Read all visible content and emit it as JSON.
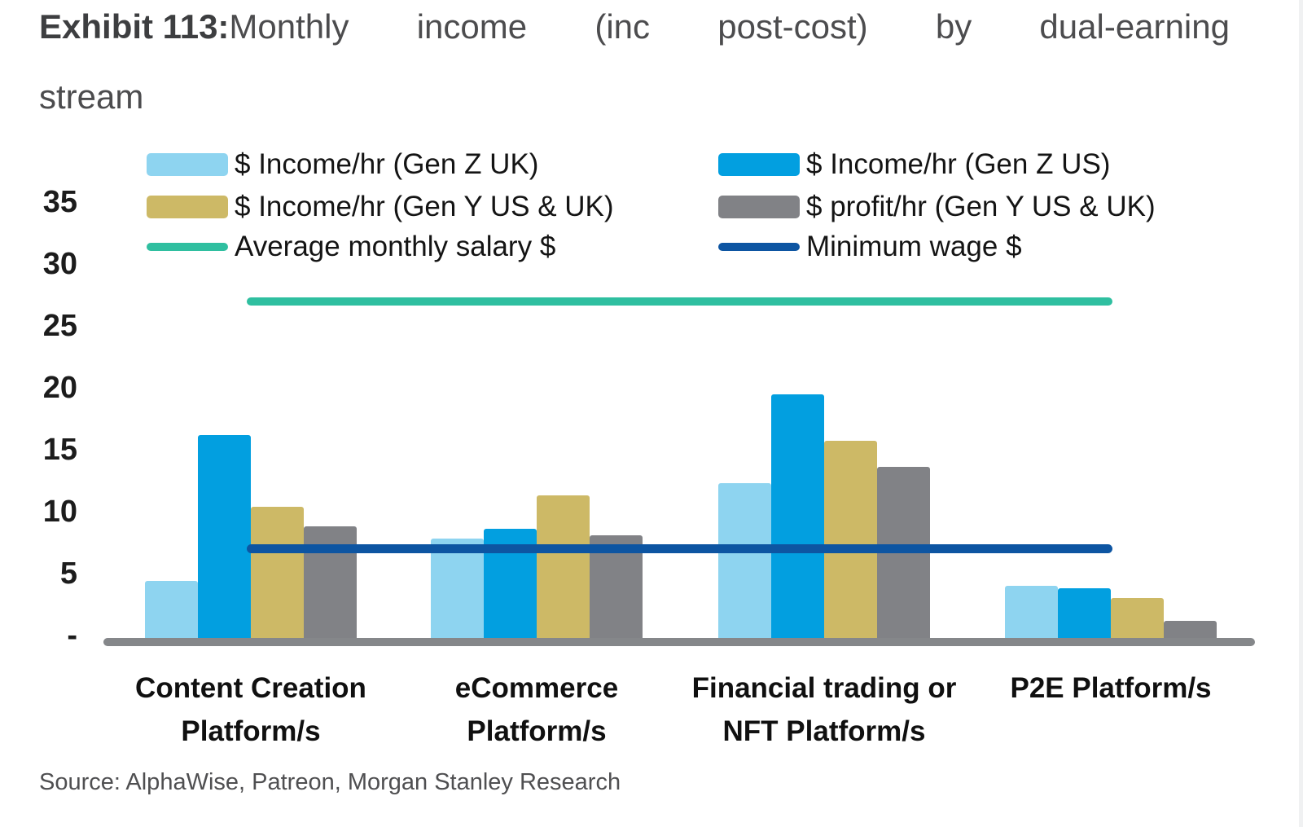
{
  "title": {
    "bold": "Exhibit 113:",
    "rest": "Monthly income (inc post-cost) by dual-earning",
    "line2": "stream"
  },
  "source": "Source: AlphaWise, Patreon, Morgan Stanley Research",
  "chart_data": {
    "type": "bar",
    "categories": [
      "Content Creation\nPlatform/s",
      "eCommerce\nPlatform/s",
      "Financial trading or\nNFT Platform/s",
      "P2E Platform/s"
    ],
    "series": [
      {
        "name": "$ Income/hr (Gen Z UK)",
        "color": "#8ed4f0",
        "values": [
          4.4,
          7.8,
          12.3,
          4.0
        ]
      },
      {
        "name": "$ Income/hr (Gen Z US)",
        "color": "#029fe0",
        "values": [
          16.2,
          8.6,
          19.5,
          3.8
        ]
      },
      {
        "name": "$ Income/hr (Gen Y US & UK)",
        "color": "#cdb966",
        "values": [
          10.4,
          11.3,
          15.7,
          3.0
        ]
      },
      {
        "name": "$ profit/hr (Gen Y US & UK)",
        "color": "#818286",
        "values": [
          8.8,
          8.1,
          13.6,
          1.2
        ]
      }
    ],
    "lines": [
      {
        "name": "Average monthly salary $",
        "color": "#2fbfa0",
        "value": 27
      },
      {
        "name": "Minimum wage $",
        "color": "#0d55a2",
        "value": 7
      }
    ],
    "yticks": [
      {
        "value": 0,
        "label": "-"
      },
      {
        "value": 5,
        "label": "5"
      },
      {
        "value": 10,
        "label": "10"
      },
      {
        "value": 15,
        "label": "15"
      },
      {
        "value": 20,
        "label": "20"
      },
      {
        "value": 25,
        "label": "25"
      },
      {
        "value": 30,
        "label": "30"
      },
      {
        "value": 35,
        "label": "35"
      }
    ],
    "ylim": [
      0,
      35
    ],
    "grid": false,
    "legend_position": "top",
    "axis_color": "#85878a"
  }
}
